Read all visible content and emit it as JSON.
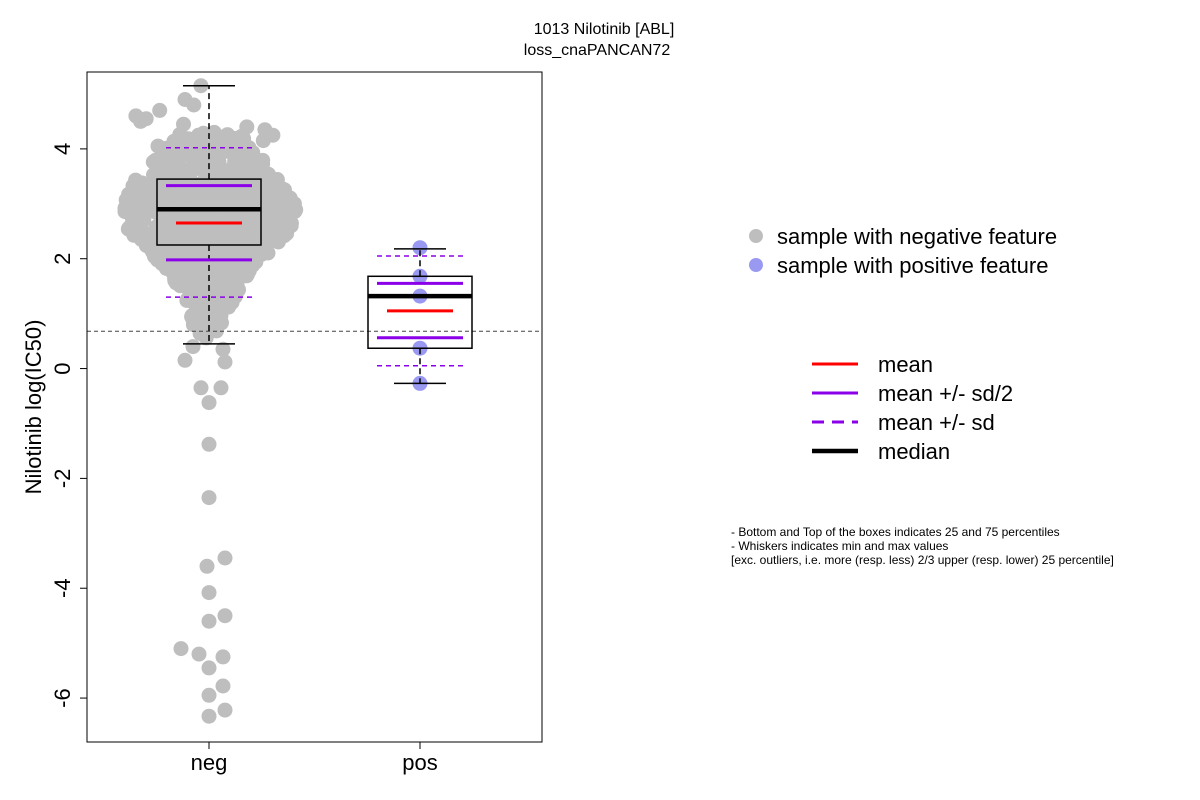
{
  "chart_data": {
    "type": "boxplot-beeswarm",
    "title_lines": [
      "1013 Nilotinib [ABL]",
      "loss_cnaPANCAN72"
    ],
    "ylabel": "Nilotinib log(IC50)",
    "ylim": [
      -6.8,
      5.4
    ],
    "yticks": [
      -6,
      -4,
      -2,
      0,
      2,
      4
    ],
    "ytick_labels": [
      "-6",
      "-4",
      "-2",
      "0",
      "2",
      "4"
    ],
    "reference_line_y": 0.68,
    "groups": [
      {
        "label": "neg",
        "point_color": "#BEBEBE",
        "min": 0.45,
        "q1": 2.25,
        "median": 2.9,
        "q3": 3.45,
        "max": 5.15,
        "mean": 2.65,
        "mean_minus_half_sd": 1.98,
        "mean_plus_half_sd": 3.33,
        "mean_minus_sd": 1.3,
        "mean_plus_sd": 4.02,
        "outliers": [
          0.4,
          0.35,
          0.15,
          0.12,
          -0.35,
          -0.35,
          -0.62,
          -1.38,
          -2.35,
          -3.45,
          -3.6,
          -4.08,
          -4.5,
          -4.6,
          -5.1,
          -5.2,
          -5.25,
          -5.45,
          -5.78,
          -5.95,
          -6.22,
          -6.33
        ]
      },
      {
        "label": "pos",
        "point_color": "#9999F2",
        "min": -0.27,
        "q1": 0.37,
        "median": 1.32,
        "q3": 1.68,
        "max": 2.18,
        "mean": 1.05,
        "mean_minus_half_sd": 0.56,
        "mean_plus_half_sd": 1.55,
        "mean_minus_sd": 0.05,
        "mean_plus_sd": 2.05,
        "points": [
          2.2,
          1.68,
          1.32,
          0.37,
          -0.27
        ]
      }
    ],
    "legend_points": [
      {
        "label": "sample with negative feature",
        "color": "#BEBEBE"
      },
      {
        "label": "sample with positive feature",
        "color": "#9999F2"
      }
    ],
    "legend_lines": [
      {
        "label": "mean",
        "color": "#FF0000",
        "style": "solid",
        "weight": "normal"
      },
      {
        "label": "mean +/- sd/2",
        "color": "#8B00E8",
        "style": "solid",
        "weight": "normal"
      },
      {
        "label": "mean +/- sd",
        "color": "#8B00E8",
        "style": "dashed",
        "weight": "normal"
      },
      {
        "label": "median",
        "color": "#000000",
        "style": "solid",
        "weight": "bold"
      }
    ],
    "notes": [
      "- Bottom and Top of the boxes indicates 25 and 75 percentiles",
      "- Whiskers indicates min and max values",
      "[exc. outliers, i.e. more (resp. less) 2/3 upper (resp. lower) 25 percentile]"
    ]
  }
}
